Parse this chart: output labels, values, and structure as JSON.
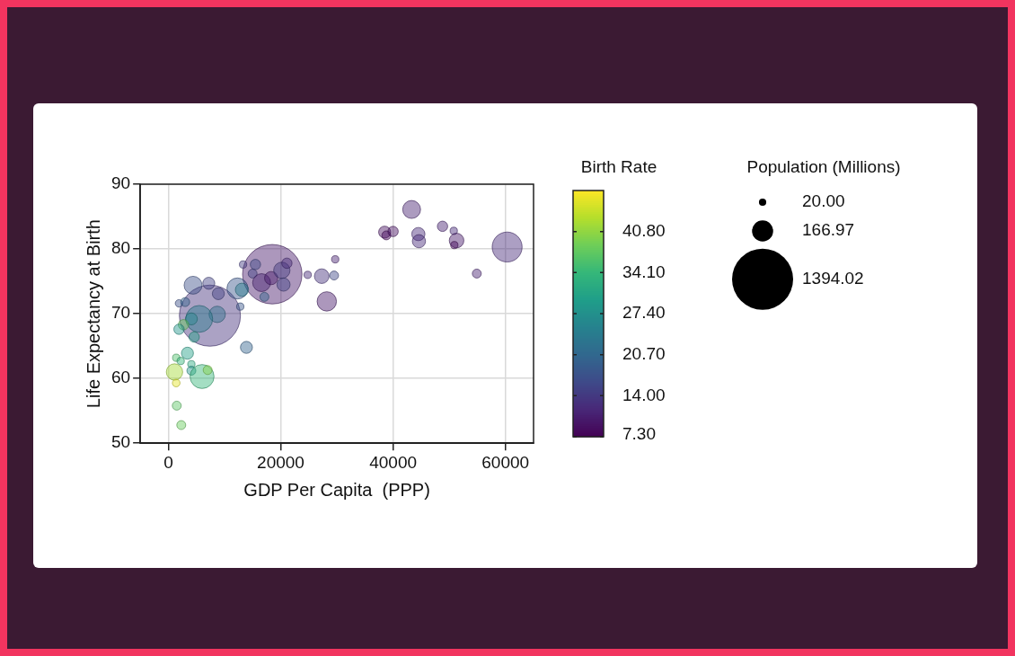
{
  "chart_data": {
    "type": "bubble",
    "xlabel": "GDP Per Capita  (PPP)",
    "ylabel": "Life Expectancy at Birth",
    "clabel": "Birth Rate",
    "legend_title": "Population (Millions)",
    "x": [
      7400,
      18500,
      4400,
      7200,
      8900,
      1900,
      3000,
      8700,
      5500,
      4100,
      2700,
      1900,
      4600,
      12300,
      13100,
      12800,
      13900,
      3400,
      1400,
      2200,
      4100,
      4100,
      6000,
      7000,
      1100,
      1400,
      1500,
      2300,
      13300,
      15500,
      15000,
      16600,
      18300,
      20200,
      21100,
      20500,
      17100,
      24800,
      27300,
      28200,
      29700,
      29500,
      43300,
      38500,
      38800,
      40000,
      44500,
      44600,
      48800,
      50800,
      51300,
      50900,
      60300,
      54900
    ],
    "values": [
      69.7,
      76.1,
      74.4,
      74.7,
      73.1,
      71.6,
      71.8,
      69.9,
      69.2,
      69.2,
      68.3,
      67.6,
      66.4,
      73.9,
      73.7,
      71.1,
      64.8,
      63.9,
      63.2,
      62.7,
      62.2,
      61.2,
      60.3,
      61.3,
      61.0,
      59.3,
      55.8,
      52.8,
      77.6,
      77.6,
      76.2,
      74.8,
      75.5,
      76.7,
      77.8,
      74.5,
      72.6,
      76.0,
      75.8,
      71.9,
      78.4,
      75.9,
      86.1,
      82.6,
      82.1,
      82.7,
      82.3,
      81.2,
      83.5,
      82.8,
      81.3,
      80.6,
      80.3,
      76.2
    ],
    "sizes": [
      1394,
      1320,
      120,
      54,
      54,
      21,
      30,
      100,
      270,
      54,
      40,
      40,
      40,
      165,
      65,
      20,
      54,
      54,
      20,
      20,
      20,
      30,
      215,
      30,
      100,
      22,
      30,
      30,
      20,
      40,
      30,
      120,
      65,
      100,
      40,
      65,
      30,
      20,
      80,
      140,
      20,
      30,
      120,
      54,
      30,
      40,
      65,
      65,
      40,
      20,
      80,
      20,
      335,
      30
    ],
    "cvalues": [
      13,
      10,
      17,
      15,
      15,
      17,
      20,
      22,
      24,
      26,
      38,
      28,
      30,
      18,
      24,
      18,
      20,
      30,
      36,
      34,
      32,
      28,
      34,
      40,
      42,
      46,
      37,
      38,
      14,
      16,
      15,
      11,
      10,
      14,
      12,
      15,
      20,
      12,
      13,
      10,
      11,
      16,
      11,
      9,
      8,
      9,
      12,
      12,
      11,
      12,
      10,
      8,
      12,
      11
    ],
    "clim": [
      7.3,
      47.5
    ],
    "cticks": [
      {
        "value": 7.3,
        "label": "7.30"
      },
      {
        "value": 14,
        "label": "14.00"
      },
      {
        "value": 20.7,
        "label": "20.70"
      },
      {
        "value": 27.4,
        "label": "27.40"
      },
      {
        "value": 34.1,
        "label": "34.10"
      },
      {
        "value": 40.8,
        "label": "40.80"
      }
    ],
    "size_legend": [
      {
        "value": 20,
        "label": "20.00"
      },
      {
        "value": 166.97,
        "label": "166.97"
      },
      {
        "value": 1394.02,
        "label": "1394.02"
      }
    ],
    "xlim": [
      -5000,
      65000
    ],
    "xticks": [
      0,
      20000,
      40000,
      60000
    ],
    "ylim": [
      50,
      90
    ],
    "yticks": [
      50,
      60,
      70,
      80,
      90
    ],
    "grid": true
  }
}
